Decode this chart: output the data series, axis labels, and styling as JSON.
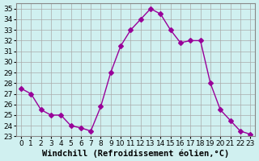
{
  "x": [
    0,
    1,
    2,
    3,
    4,
    5,
    6,
    7,
    8,
    9,
    10,
    11,
    12,
    13,
    14,
    15,
    16,
    17,
    18,
    19,
    20,
    21,
    22,
    23
  ],
  "y": [
    27.5,
    27.0,
    25.5,
    25.0,
    25.0,
    24.0,
    23.8,
    23.5,
    25.8,
    29.0,
    31.5,
    33.0,
    34.0,
    35.0,
    34.5,
    33.0,
    31.8,
    32.0,
    32.0,
    28.0,
    25.5,
    24.5,
    23.5,
    23.2
  ],
  "line_color": "#990099",
  "marker": "D",
  "marker_size": 3,
  "bg_color": "#d0f0f0",
  "grid_color": "#aaaaaa",
  "xlabel": "Windchill (Refroidissement éolien,°C)",
  "xlim": [
    -0.5,
    23.5
  ],
  "ylim": [
    23,
    35.5
  ],
  "yticks": [
    23,
    24,
    25,
    26,
    27,
    28,
    29,
    30,
    31,
    32,
    33,
    34,
    35
  ],
  "xticks": [
    0,
    1,
    2,
    3,
    4,
    5,
    6,
    7,
    8,
    9,
    10,
    11,
    12,
    13,
    14,
    15,
    16,
    17,
    18,
    19,
    20,
    21,
    22,
    23
  ],
  "tick_fontsize": 6.5,
  "xlabel_fontsize": 7.5
}
